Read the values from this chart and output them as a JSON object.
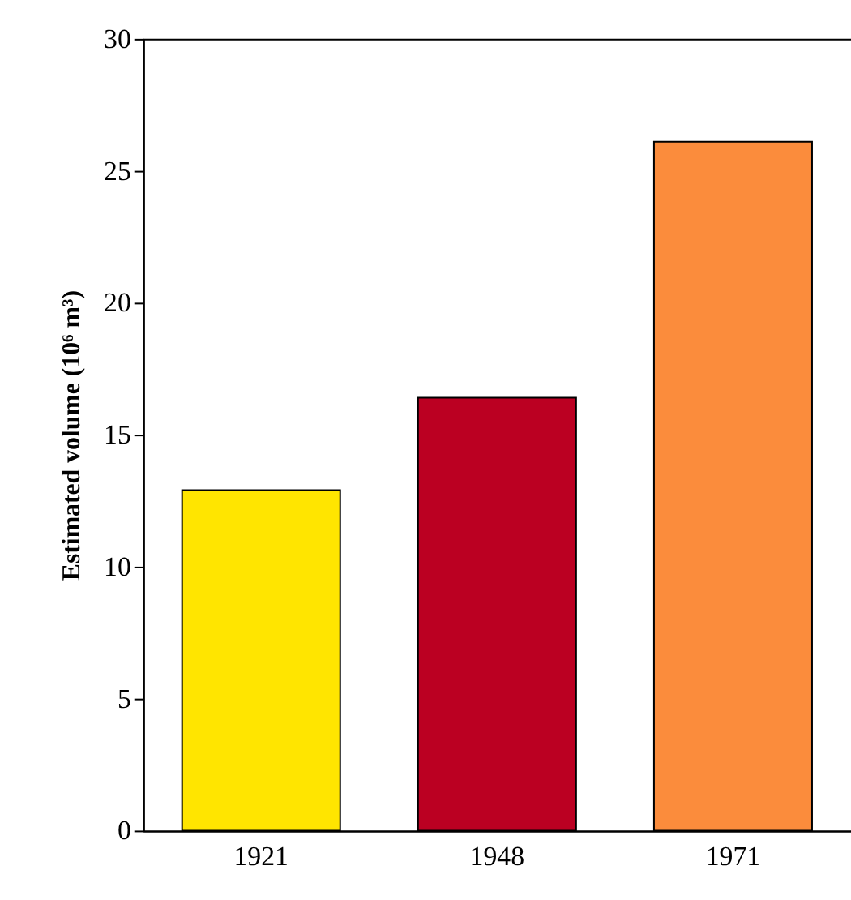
{
  "chart_data": {
    "type": "bar",
    "ylabel": "Estimated volume (10⁶ m³)",
    "categories": [
      "1921",
      "1948",
      "1971"
    ],
    "values": [
      12.9,
      16.4,
      26.1
    ],
    "colors": [
      "#ffe500",
      "#bb0022",
      "#fb8c3c"
    ],
    "ylim": [
      0,
      30
    ],
    "yticks": [
      0,
      5,
      10,
      15,
      20,
      25,
      30
    ],
    "grid": false,
    "legend": false
  }
}
